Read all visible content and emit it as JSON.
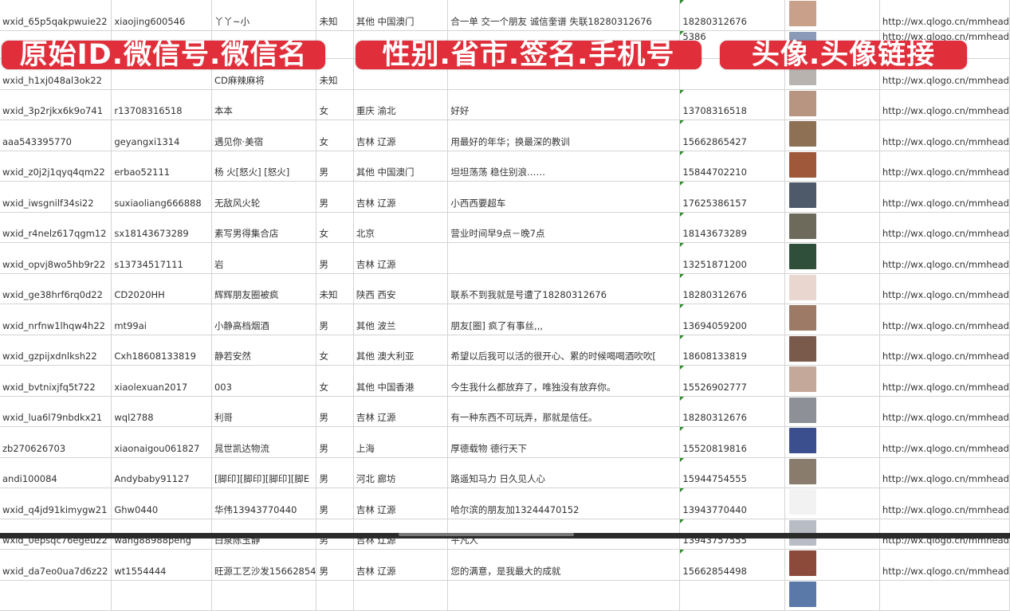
{
  "banners": [
    "原始ID.微信号.微信名",
    "性别.省市.签名.手机号",
    "头像.头像链接"
  ],
  "rows": [
    {
      "id": "wxid_65p5qakpwuie22",
      "wechat": "xiaojing600546",
      "name": "丫丫~小",
      "gender": "未知",
      "region": "其他 中国澳门",
      "sig": "合一单 交一个朋友 诚信奎谱 失联18280312676",
      "phone": "18280312676",
      "avatar": "#c9a08a",
      "url": "http://wx.qlogo.cn/mmhead"
    },
    {
      "id": "",
      "wechat": "",
      "name": "",
      "gender": "",
      "region": "",
      "sig": "",
      "phone": "5386",
      "avatar": "#8a9bb8",
      "url": "http://wx.qlogo.cn/mmhead"
    },
    {
      "id": "wxid_h1xj048al3ok22",
      "wechat": "",
      "name": "CD麻辣麻将",
      "gender": "未知",
      "region": "",
      "sig": "",
      "phone": "",
      "avatar": "#b9b3b0",
      "url": "http://wx.qlogo.cn/mmhead"
    },
    {
      "id": "wxid_3p2rjkx6k9o741",
      "wechat": "r13708316518",
      "name": "本本",
      "gender": "女",
      "region": "重庆 渝北",
      "sig": "好好",
      "phone": "13708316518",
      "avatar": "#b89580",
      "url": "http://wx.qlogo.cn/mmhead"
    },
    {
      "id": "aaa543395770",
      "wechat": "geyangxi1314",
      "name": "遇见你·美宿",
      "gender": "女",
      "region": "吉林 辽源",
      "sig": "用最好的年华；换最深的教训",
      "phone": "15662865427",
      "avatar": "#8e7055",
      "url": "http://wx.qlogo.cn/mmhead"
    },
    {
      "id": "wxid_z0j2j1qyq4qm22",
      "wechat": "erbao52111",
      "name": "杨 火[怒火] [怒火]",
      "gender": "男",
      "region": "其他 中国澳门",
      "sig": "坦坦荡荡 稳住别浪……",
      "phone": "15844702210",
      "avatar": "#a0583a",
      "url": "http://wx.qlogo.cn/mmhead"
    },
    {
      "id": "wxid_iwsgnilf34si22",
      "wechat": "suxiaoliang666888",
      "name": "无敌风火轮",
      "gender": "男",
      "region": "吉林 辽源",
      "sig": "小西西要超车",
      "phone": "17625386157",
      "avatar": "#4e5a6a",
      "url": "http://wx.qlogo.cn/mmhead"
    },
    {
      "id": "wxid_r4nelz617qgm12",
      "wechat": "sx18143673289",
      "name": "素写男得集合店",
      "gender": "女",
      "region": "北京",
      "sig": "营业时间早9点－晚7点",
      "phone": "18143673289",
      "avatar": "#6d6a5c",
      "url": "http://wx.qlogo.cn/mmhead"
    },
    {
      "id": "wxid_opvj8wo5hb9r22",
      "wechat": "s13734517111",
      "name": "岩",
      "gender": "男",
      "region": "吉林 辽源",
      "sig": "",
      "phone": "13251871200",
      "avatar": "#2f4f3a",
      "url": "http://wx.qlogo.cn/mmhead"
    },
    {
      "id": "wxid_ge38hrf6rq0d22",
      "wechat": "CD2020HH",
      "name": "辉辉朋友圈被疯",
      "gender": "未知",
      "region": "陕西 西安",
      "sig": "联系不到我就是号遭了18280312676",
      "phone": "18280312676",
      "avatar": "#e9d6cf",
      "url": "http://wx.qlogo.cn/mmhead"
    },
    {
      "id": "wxid_nrfnw1lhqw4h22",
      "wechat": "mt99ai",
      "name": "小静高档烟酒",
      "gender": "男",
      "region": "其他 波兰",
      "sig": "朋友[圈] 疯了有事丝,,,",
      "phone": "13694059200",
      "avatar": "#9c7a66",
      "url": "http://wx.qlogo.cn/mmhead"
    },
    {
      "id": "wxid_gzpijxdnlksh22",
      "wechat": "Cxh18608133819",
      "name": "静若安然",
      "gender": "女",
      "region": "其他 澳大利亚",
      "sig": "希望以后我可以活的很开心、累的时候喝喝酒吹吹[",
      "phone": "18608133819",
      "avatar": "#7a5a4a",
      "url": "http://wx.qlogo.cn/mmhead"
    },
    {
      "id": "wxid_bvtnixjfq5t722",
      "wechat": "xiaolexuan2017",
      "name": "003",
      "gender": "女",
      "region": "其他 中国香港",
      "sig": "今生我什么都放弃了，唯独没有放弃你。",
      "phone": "15526902777",
      "avatar": "#c4a89a",
      "url": "http://wx.qlogo.cn/mmhead"
    },
    {
      "id": "wxid_lua6l79nbdkx21",
      "wechat": "wql2788",
      "name": "利哥",
      "gender": "男",
      "region": "吉林 辽源",
      "sig": "有一种东西不可玩弄，那就是信任。",
      "phone": "18280312676",
      "avatar": "#8d9096",
      "url": "http://wx.qlogo.cn/mmhead"
    },
    {
      "id": "zb270626703",
      "wechat": "xiaonaigou061827",
      "name": "晁世凯达物流",
      "gender": "男",
      "region": "上海",
      "sig": "厚德载物 德行天下",
      "phone": "15520819816",
      "avatar": "#3b4f8f",
      "url": "http://wx.qlogo.cn/mmhead"
    },
    {
      "id": "andi100084",
      "wechat": "Andybaby91127",
      "name": "[脚印][脚印][脚印][脚E",
      "gender": "男",
      "region": "河北 廊坊",
      "sig": "路遥知马力 日久见人心",
      "phone": "15944754555",
      "avatar": "#8a7c6c",
      "url": "http://wx.qlogo.cn/mmhead"
    },
    {
      "id": "wxid_q4jd91kimygw21",
      "wechat": "Ghw0440",
      "name": "华伟13943770440",
      "gender": "男",
      "region": "吉林 辽源",
      "sig": "哈尔滨的朋友加13244470152",
      "phone": "13943770440",
      "avatar": "#f2f2f2",
      "url": "http://wx.qlogo.cn/mmhead"
    },
    {
      "id": "wxid_0epsqc76egeu22",
      "wechat": "wang88988peng",
      "name": "白泉陈玉静",
      "gender": "男",
      "region": "吉林 辽源",
      "sig": "平凡人",
      "phone": "13943757555",
      "avatar": "#b8bcc4",
      "url": "http://wx.qlogo.cn/mmhead"
    },
    {
      "id": "wxid_da7eo0ua7d6z22",
      "wechat": "wt1554444",
      "name": "旺源工艺沙发15662854",
      "gender": "男",
      "region": "吉林 辽源",
      "sig": "您的满意，是我最大的成就",
      "phone": "15662854498",
      "avatar": "#8c4a3a",
      "url": "http://wx.qlogo.cn/mmhead"
    },
    {
      "id": "",
      "wechat": "",
      "name": "",
      "gender": "",
      "region": "",
      "sig": "",
      "phone": "",
      "avatar": "#5a78a8",
      "url": ""
    }
  ]
}
